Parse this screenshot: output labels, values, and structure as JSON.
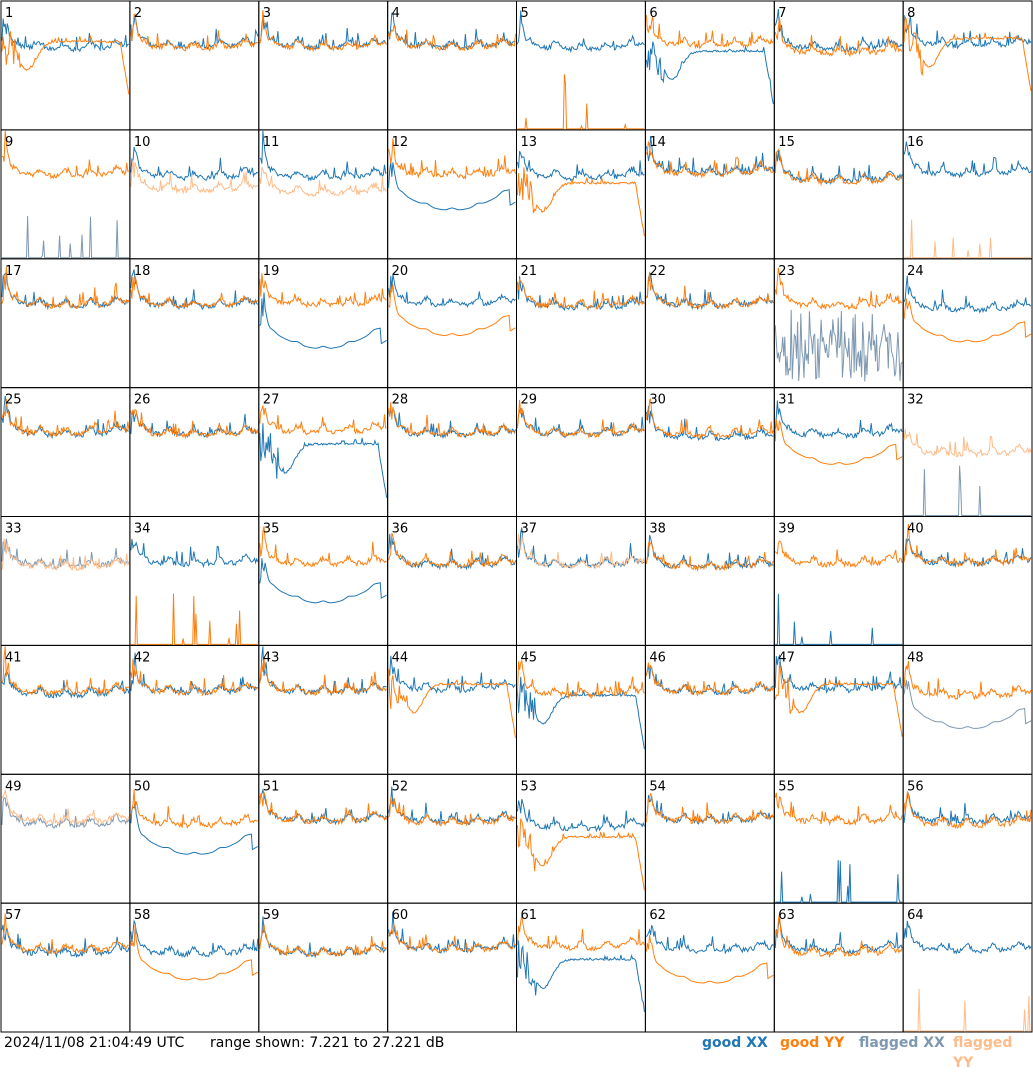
{
  "footer": {
    "timestamp": "2024/11/08 21:04:49 UTC",
    "range": "range shown: 7.221 to 27.221 dB"
  },
  "legend": [
    {
      "label": "good XX",
      "color": "#1f77b4"
    },
    {
      "label": "good YY",
      "color": "#ff7f0e"
    },
    {
      "label": "flagged XX",
      "color": "#7e98b0"
    },
    {
      "label": "flagged YY",
      "color": "#ffbb88"
    }
  ],
  "chart_data": {
    "type": "line",
    "layout": "8x8 small multiples (autocorrelation spectra per antenna)",
    "ylim": [
      7.221,
      27.221
    ],
    "y_units": "dB",
    "x_labeled": false,
    "series_colors": {
      "good_xx": "#1f77b4",
      "good_yy": "#ff7f0e",
      "flagged_xx": "#7e98b0",
      "flagged_yy": "#ffbb88"
    },
    "panels": [
      {
        "label": "1",
        "xx": "good",
        "yy": "good",
        "xx_shape": "normal",
        "yy_shape": "dip",
        "xx_level": 20.5,
        "yy_level": 19.5
      },
      {
        "label": "2",
        "xx": "good",
        "yy": "good",
        "xx_shape": "normal",
        "yy_shape": "normal",
        "xx_level": 20.8,
        "yy_level": 20.6
      },
      {
        "label": "3",
        "xx": "good",
        "yy": "good",
        "xx_shape": "normal",
        "yy_shape": "normal",
        "xx_level": 20.8,
        "yy_level": 20.6
      },
      {
        "label": "4",
        "xx": "good",
        "yy": "good",
        "xx_shape": "normal",
        "yy_shape": "normal",
        "xx_level": 20.8,
        "yy_level": 20.7
      },
      {
        "label": "5",
        "xx": "good",
        "yy": "good",
        "xx_shape": "normal",
        "yy_shape": "spikes",
        "xx_level": 20.5,
        "yy_level": 7.221
      },
      {
        "label": "6",
        "xx": "good",
        "yy": "good",
        "xx_shape": "dip",
        "yy_shape": "normal",
        "xx_level": 18.0,
        "yy_level": 21.0
      },
      {
        "label": "7",
        "xx": "good",
        "yy": "good",
        "xx_shape": "normal",
        "yy_shape": "normal",
        "xx_level": 20.5,
        "yy_level": 19.8
      },
      {
        "label": "8",
        "xx": "good",
        "yy": "good",
        "xx_shape": "normal",
        "yy_shape": "dip",
        "xx_level": 21.0,
        "yy_level": 20.0
      },
      {
        "label": "9",
        "xx": "flagged",
        "yy": "good",
        "xx_shape": "spikes",
        "yy_shape": "normal",
        "xx_level": 7.221,
        "yy_level": 20.8
      },
      {
        "label": "10",
        "xx": "good",
        "yy": "flagged",
        "xx_shape": "normal",
        "yy_shape": "normal",
        "xx_level": 20.5,
        "yy_level": 18.5
      },
      {
        "label": "11",
        "xx": "good",
        "yy": "flagged",
        "xx_shape": "normal",
        "yy_shape": "normal",
        "xx_level": 20.5,
        "yy_level": 18.0
      },
      {
        "label": "12",
        "xx": "good",
        "yy": "good",
        "xx_shape": "low",
        "yy_shape": "normal",
        "xx_level": 18.5,
        "yy_level": 20.8
      },
      {
        "label": "13",
        "xx": "good",
        "yy": "good",
        "xx_shape": "normal",
        "yy_shape": "dip",
        "xx_level": 20.5,
        "yy_level": 17.5
      },
      {
        "label": "14",
        "xx": "good",
        "yy": "good",
        "xx_shape": "normal",
        "yy_shape": "normal",
        "xx_level": 21.2,
        "yy_level": 21.0
      },
      {
        "label": "15",
        "xx": "good",
        "yy": "good",
        "xx_shape": "normal",
        "yy_shape": "normal",
        "xx_level": 20.0,
        "yy_level": 19.8
      },
      {
        "label": "16",
        "xx": "good",
        "yy": "flagged",
        "xx_shape": "normal",
        "yy_shape": "spikes",
        "xx_level": 21.0,
        "yy_level": 7.221
      },
      {
        "label": "17",
        "xx": "good",
        "yy": "good",
        "xx_shape": "normal",
        "yy_shape": "normal",
        "xx_level": 20.6,
        "yy_level": 20.6
      },
      {
        "label": "18",
        "xx": "good",
        "yy": "good",
        "xx_shape": "normal",
        "yy_shape": "normal",
        "xx_level": 20.5,
        "yy_level": 20.6
      },
      {
        "label": "19",
        "xx": "good",
        "yy": "good",
        "xx_shape": "low",
        "yy_shape": "normal",
        "xx_level": 17.0,
        "yy_level": 20.8
      },
      {
        "label": "20",
        "xx": "good",
        "yy": "good",
        "xx_shape": "normal",
        "yy_shape": "low",
        "xx_level": 20.8,
        "yy_level": 19.0
      },
      {
        "label": "21",
        "xx": "good",
        "yy": "good",
        "xx_shape": "normal",
        "yy_shape": "normal",
        "xx_level": 20.3,
        "yy_level": 20.5
      },
      {
        "label": "22",
        "xx": "good",
        "yy": "good",
        "xx_shape": "normal",
        "yy_shape": "normal",
        "xx_level": 20.6,
        "yy_level": 20.6
      },
      {
        "label": "23",
        "xx": "flagged",
        "yy": "good",
        "xx_shape": "noisy",
        "yy_shape": "normal",
        "xx_level": 12.0,
        "yy_level": 20.5
      },
      {
        "label": "24",
        "xx": "good",
        "yy": "good",
        "xx_shape": "normal",
        "yy_shape": "low",
        "xx_level": 20.0,
        "yy_level": 18.0
      },
      {
        "label": "25",
        "xx": "good",
        "yy": "good",
        "xx_shape": "normal",
        "yy_shape": "normal",
        "xx_level": 20.6,
        "yy_level": 20.8
      },
      {
        "label": "26",
        "xx": "good",
        "yy": "good",
        "xx_shape": "normal",
        "yy_shape": "normal",
        "xx_level": 20.6,
        "yy_level": 20.5
      },
      {
        "label": "27",
        "xx": "good",
        "yy": "good",
        "xx_shape": "dip",
        "yy_shape": "normal",
        "xx_level": 17.0,
        "yy_level": 21.0
      },
      {
        "label": "28",
        "xx": "good",
        "yy": "good",
        "xx_shape": "normal",
        "yy_shape": "normal",
        "xx_level": 20.5,
        "yy_level": 20.6
      },
      {
        "label": "29",
        "xx": "good",
        "yy": "good",
        "xx_shape": "normal",
        "yy_shape": "normal",
        "xx_level": 20.6,
        "yy_level": 20.6
      },
      {
        "label": "30",
        "xx": "good",
        "yy": "good",
        "xx_shape": "normal",
        "yy_shape": "normal",
        "xx_level": 20.0,
        "yy_level": 20.5
      },
      {
        "label": "31",
        "xx": "good",
        "yy": "good",
        "xx_shape": "normal",
        "yy_shape": "low",
        "xx_level": 20.5,
        "yy_level": 19.0
      },
      {
        "label": "32",
        "xx": "flagged",
        "yy": "flagged",
        "xx_shape": "spikes",
        "yy_shape": "normal",
        "xx_level": 7.221,
        "yy_level": 17.5
      },
      {
        "label": "33",
        "xx": "flagged",
        "yy": "flagged",
        "xx_shape": "normal",
        "yy_shape": "normal",
        "xx_level": 20.2,
        "yy_level": 20.0
      },
      {
        "label": "34",
        "xx": "good",
        "yy": "good",
        "xx_shape": "normal",
        "yy_shape": "spikes",
        "xx_level": 20.5,
        "yy_level": 7.221
      },
      {
        "label": "35",
        "xx": "good",
        "yy": "good",
        "xx_shape": "low",
        "yy_shape": "normal",
        "xx_level": 17.5,
        "yy_level": 20.5
      },
      {
        "label": "36",
        "xx": "good",
        "yy": "good",
        "xx_shape": "normal",
        "yy_shape": "normal",
        "xx_level": 20.2,
        "yy_level": 20.3
      },
      {
        "label": "37",
        "xx": "good",
        "yy": "flagged",
        "xx_shape": "normal",
        "yy_shape": "normal",
        "xx_level": 20.3,
        "yy_level": 20.3
      },
      {
        "label": "38",
        "xx": "good",
        "yy": "good",
        "xx_shape": "normal",
        "yy_shape": "normal",
        "xx_level": 20.0,
        "yy_level": 20.0
      },
      {
        "label": "39",
        "xx": "good",
        "yy": "good",
        "xx_shape": "spikes",
        "yy_shape": "normal",
        "xx_level": 7.221,
        "yy_level": 20.5
      },
      {
        "label": "40",
        "xx": "good",
        "yy": "good",
        "xx_shape": "normal",
        "yy_shape": "normal",
        "xx_level": 20.6,
        "yy_level": 20.6
      },
      {
        "label": "41",
        "xx": "good",
        "yy": "good",
        "xx_shape": "normal",
        "yy_shape": "normal",
        "xx_level": 20.2,
        "yy_level": 20.5
      },
      {
        "label": "42",
        "xx": "good",
        "yy": "good",
        "xx_shape": "normal",
        "yy_shape": "normal",
        "xx_level": 20.6,
        "yy_level": 20.6
      },
      {
        "label": "43",
        "xx": "good",
        "yy": "good",
        "xx_shape": "normal",
        "yy_shape": "normal",
        "xx_level": 20.6,
        "yy_level": 20.6
      },
      {
        "label": "44",
        "xx": "good",
        "yy": "good",
        "xx_shape": "normal",
        "yy_shape": "dip",
        "xx_level": 21.0,
        "yy_level": 19.8
      },
      {
        "label": "45",
        "xx": "good",
        "yy": "good",
        "xx_shape": "dip",
        "yy_shape": "normal",
        "xx_level": 18.0,
        "yy_level": 20.2
      },
      {
        "label": "46",
        "xx": "good",
        "yy": "good",
        "xx_shape": "normal",
        "yy_shape": "normal",
        "xx_level": 20.6,
        "yy_level": 20.6
      },
      {
        "label": "47",
        "xx": "good",
        "yy": "good",
        "xx_shape": "normal",
        "yy_shape": "dip",
        "xx_level": 21.0,
        "yy_level": 19.8
      },
      {
        "label": "48",
        "xx": "flagged",
        "yy": "good",
        "xx_shape": "low",
        "yy_shape": "normal",
        "xx_level": 18.0,
        "yy_level": 20.0
      },
      {
        "label": "49",
        "xx": "flagged",
        "yy": "flagged",
        "xx_shape": "normal",
        "yy_shape": "normal",
        "xx_level": 20.0,
        "yy_level": 20.5
      },
      {
        "label": "50",
        "xx": "good",
        "yy": "good",
        "xx_shape": "low",
        "yy_shape": "normal",
        "xx_level": 18.5,
        "yy_level": 20.0
      },
      {
        "label": "51",
        "xx": "good",
        "yy": "good",
        "xx_shape": "normal",
        "yy_shape": "normal",
        "xx_level": 20.6,
        "yy_level": 20.6
      },
      {
        "label": "52",
        "xx": "good",
        "yy": "good",
        "xx_shape": "normal",
        "yy_shape": "normal",
        "xx_level": 20.5,
        "yy_level": 20.3
      },
      {
        "label": "53",
        "xx": "good",
        "yy": "good",
        "xx_shape": "normal",
        "yy_shape": "dip",
        "xx_level": 19.5,
        "yy_level": 16.0
      },
      {
        "label": "54",
        "xx": "good",
        "yy": "good",
        "xx_shape": "normal",
        "yy_shape": "normal",
        "xx_level": 20.6,
        "yy_level": 20.6
      },
      {
        "label": "55",
        "xx": "good",
        "yy": "good",
        "xx_shape": "spikes",
        "yy_shape": "normal",
        "xx_level": 7.221,
        "yy_level": 20.5
      },
      {
        "label": "56",
        "xx": "good",
        "yy": "good",
        "xx_shape": "normal",
        "yy_shape": "normal",
        "xx_level": 20.5,
        "yy_level": 20.0
      },
      {
        "label": "57",
        "xx": "good",
        "yy": "good",
        "xx_shape": "normal",
        "yy_shape": "normal",
        "xx_level": 20.0,
        "yy_level": 20.5
      },
      {
        "label": "58",
        "xx": "good",
        "yy": "good",
        "xx_shape": "normal",
        "yy_shape": "low",
        "xx_level": 20.0,
        "yy_level": 19.0
      },
      {
        "label": "59",
        "xx": "good",
        "yy": "good",
        "xx_shape": "normal",
        "yy_shape": "normal",
        "xx_level": 20.0,
        "yy_level": 20.0
      },
      {
        "label": "60",
        "xx": "good",
        "yy": "good",
        "xx_shape": "normal",
        "yy_shape": "normal",
        "xx_level": 20.6,
        "yy_level": 20.6
      },
      {
        "label": "61",
        "xx": "good",
        "yy": "good",
        "xx_shape": "dip",
        "yy_shape": "normal",
        "xx_level": 17.0,
        "yy_level": 21.0
      },
      {
        "label": "62",
        "xx": "good",
        "yy": "good",
        "xx_shape": "normal",
        "yy_shape": "low",
        "xx_level": 20.5,
        "yy_level": 18.5
      },
      {
        "label": "63",
        "xx": "good",
        "yy": "good",
        "xx_shape": "normal",
        "yy_shape": "normal",
        "xx_level": 20.5,
        "yy_level": 20.0
      },
      {
        "label": "64",
        "xx": "good",
        "yy": "flagged",
        "xx_shape": "normal",
        "yy_shape": "spikes",
        "xx_level": 20.5,
        "yy_level": 7.221
      }
    ]
  }
}
